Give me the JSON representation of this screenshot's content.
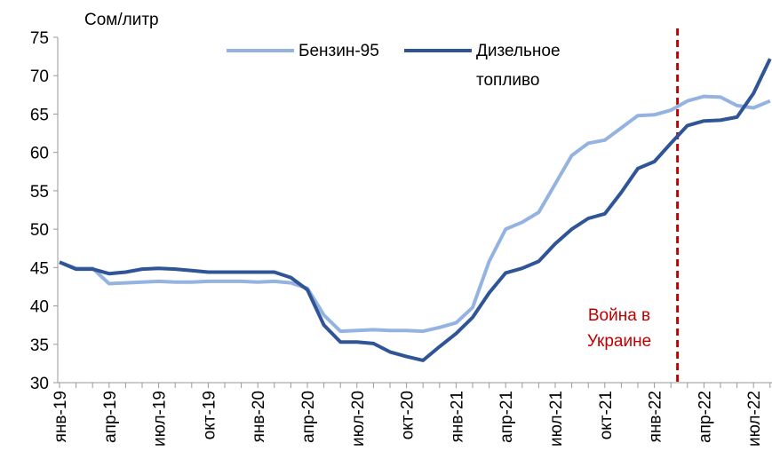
{
  "chart_data": {
    "type": "line",
    "ylabel": "Сом/литр",
    "categories": [
      "янв-19",
      null,
      null,
      "апр-19",
      null,
      null,
      "июл-19",
      null,
      null,
      "окт-19",
      null,
      null,
      "янв-20",
      null,
      null,
      "апр-20",
      null,
      null,
      "июл-20",
      null,
      null,
      "окт-20",
      null,
      null,
      "янв-21",
      null,
      null,
      "апр-21",
      null,
      null,
      "июл-21",
      null,
      null,
      "окт-21",
      null,
      null,
      "янв-22",
      null,
      null,
      "апр-22",
      null,
      null,
      "июл-22",
      null
    ],
    "series": [
      {
        "name": "Бензин-95",
        "color": "#95b3e0",
        "values": [
          45.7,
          44.9,
          44.9,
          42.9,
          43.0,
          43.1,
          43.2,
          43.1,
          43.1,
          43.2,
          43.2,
          43.2,
          43.1,
          43.2,
          43.0,
          42.3,
          38.8,
          36.7,
          36.8,
          36.9,
          36.8,
          36.8,
          36.7,
          37.2,
          37.8,
          39.8,
          45.8,
          50.0,
          50.9,
          52.2,
          55.9,
          59.6,
          61.2,
          61.6,
          63.2,
          64.8,
          64.9,
          65.5,
          66.7,
          67.3,
          67.2,
          66.1,
          65.8,
          66.7
        ]
      },
      {
        "name": "Дизельное топливо",
        "color": "#2f5597",
        "values": [
          45.7,
          44.8,
          44.8,
          44.2,
          44.4,
          44.8,
          44.9,
          44.8,
          44.6,
          44.4,
          44.4,
          44.4,
          44.4,
          44.4,
          43.7,
          42.1,
          37.5,
          35.3,
          35.3,
          35.1,
          34.0,
          33.4,
          32.9,
          34.7,
          36.4,
          38.5,
          41.7,
          44.3,
          44.9,
          45.8,
          48.1,
          50.0,
          51.4,
          52.0,
          54.8,
          57.9,
          58.8,
          61.2,
          63.5,
          64.1,
          64.2,
          64.6,
          67.7,
          72.2
        ]
      }
    ],
    "ylim": [
      30,
      75
    ],
    "yticks": [
      30,
      35,
      40,
      45,
      50,
      55,
      60,
      65,
      70,
      75
    ],
    "grid": false,
    "annotation": {
      "text": "Война в Украине",
      "color": "#c00000"
    }
  }
}
